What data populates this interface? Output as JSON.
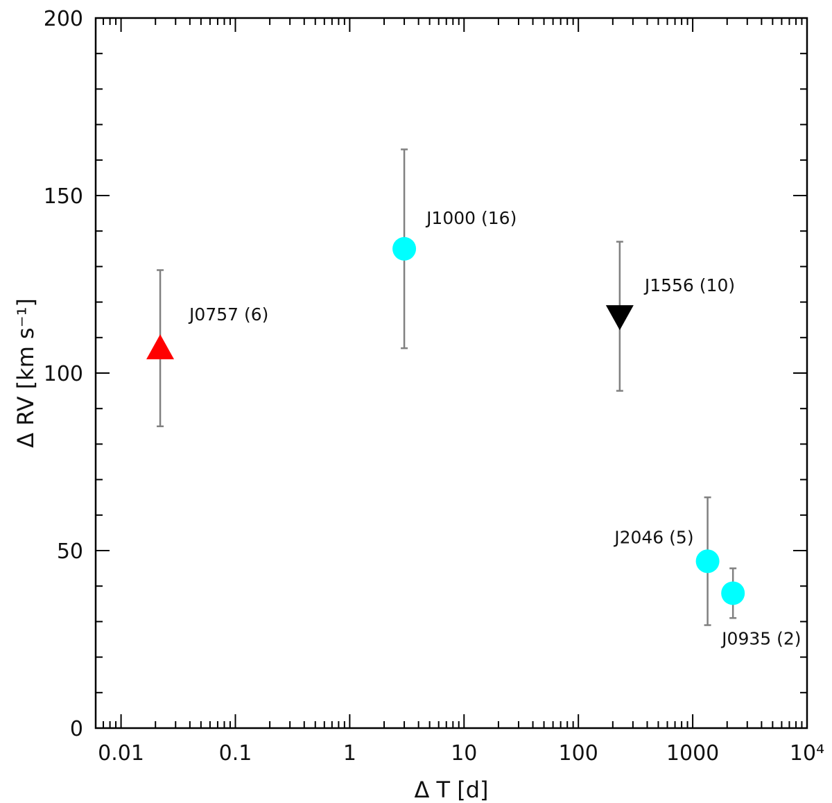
{
  "chart_data": {
    "type": "scatter",
    "xscale": "log",
    "xlim": [
      0.006,
      10000
    ],
    "ylim": [
      0,
      200
    ],
    "xlabel": "Δ T [d]",
    "ylabel": "Δ RV [km s⁻¹]",
    "xticks": [
      {
        "value": 0.01,
        "label": "0.01"
      },
      {
        "value": 0.1,
        "label": "0.1"
      },
      {
        "value": 1,
        "label": "1"
      },
      {
        "value": 10,
        "label": "10"
      },
      {
        "value": 100,
        "label": "100"
      },
      {
        "value": 1000,
        "label": "1000"
      },
      {
        "value": 10000,
        "label": "10⁴"
      }
    ],
    "yticks": [
      {
        "value": 0,
        "label": "0"
      },
      {
        "value": 50,
        "label": "50"
      },
      {
        "value": 100,
        "label": "100"
      },
      {
        "value": 150,
        "label": "150"
      },
      {
        "value": 200,
        "label": "200"
      }
    ],
    "points": [
      {
        "label": "J0757 (6)",
        "x": 0.022,
        "y": 107,
        "ylo": 85,
        "yhi": 129,
        "marker": "triangle-up",
        "color": "#ff0000"
      },
      {
        "label": "J1000 (16)",
        "x": 3.0,
        "y": 135,
        "ylo": 107,
        "yhi": 163,
        "marker": "circle",
        "color": "#00ffff"
      },
      {
        "label": "J1556 (10)",
        "x": 230,
        "y": 116,
        "ylo": 95,
        "yhi": 137,
        "marker": "triangle-down",
        "color": "#000000"
      },
      {
        "label": "J2046 (5)",
        "x": 1350,
        "y": 47,
        "ylo": 29,
        "yhi": 65,
        "marker": "circle",
        "color": "#00ffff"
      },
      {
        "label": "J0935 (2)",
        "x": 2250,
        "y": 38,
        "ylo": 31,
        "yhi": 45,
        "marker": "circle",
        "color": "#00ffff"
      }
    ],
    "errorbar_color": "#808080",
    "grid": false,
    "legend": "none"
  }
}
